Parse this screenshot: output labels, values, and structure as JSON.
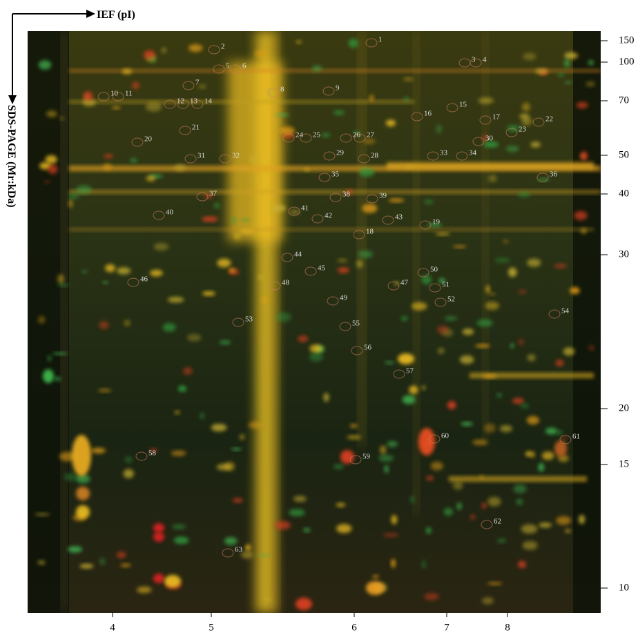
{
  "x_axis": {
    "label": "IEF (pI)",
    "ticks": [
      4,
      5,
      6,
      7,
      8
    ]
  },
  "y_axis": {
    "label": "SDS-PAGE (Mr:kDa)",
    "ticks": [
      150,
      100,
      70,
      50,
      40,
      30,
      20,
      15,
      10
    ]
  },
  "spots": [
    "1",
    "2",
    "3",
    "4",
    "5",
    "6",
    "7",
    "8",
    "9",
    "10",
    "11",
    "12",
    "13",
    "14",
    "15",
    "16",
    "17",
    "18",
    "19",
    "20",
    "21",
    "22",
    "23",
    "24",
    "25",
    "26",
    "27",
    "28",
    "29",
    "30",
    "31",
    "32",
    "33",
    "34",
    "35",
    "36",
    "37",
    "38",
    "39",
    "40",
    "41",
    "42",
    "43",
    "44",
    "45",
    "46",
    "47",
    "48",
    "49",
    "50",
    "51",
    "52",
    "53",
    "54",
    "55",
    "56",
    "57",
    "58",
    "59",
    "60",
    "61",
    "62",
    "63"
  ]
}
